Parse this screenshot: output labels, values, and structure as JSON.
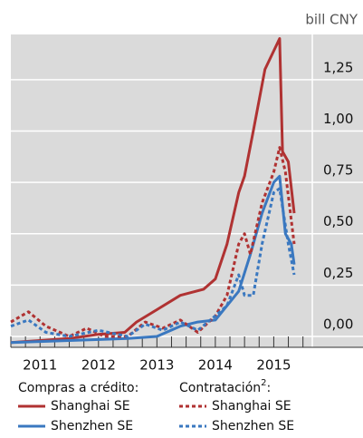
{
  "chart_data": {
    "type": "line",
    "unit": "bill CNY",
    "xlim": [
      2011,
      2016.16
    ],
    "ylim": [
      -0.053,
      1.47
    ],
    "yticks": [
      {
        "value": 0,
        "label": "0,00"
      },
      {
        "value": 0.25,
        "label": "0,25"
      },
      {
        "value": 0.5,
        "label": "0,50"
      },
      {
        "value": 0.75,
        "label": "0,75"
      },
      {
        "value": 1.0,
        "label": "1,00"
      },
      {
        "value": 1.25,
        "label": "1,25"
      }
    ],
    "xticks": [
      {
        "value": 2011.5,
        "label": "2011"
      },
      {
        "value": 2012.5,
        "label": "2012"
      },
      {
        "value": 2013.5,
        "label": "2013"
      },
      {
        "value": 2014.5,
        "label": "2014"
      },
      {
        "value": 2015.5,
        "label": "2015"
      }
    ],
    "xticks_minor": [
      2011,
      2011.25,
      2011.5,
      2011.75,
      2012,
      2012.25,
      2012.5,
      2012.75,
      2013,
      2013.25,
      2013.5,
      2013.75,
      2014,
      2014.25,
      2014.5,
      2014.75,
      2015,
      2015.25,
      2015.5,
      2015.75,
      2016
    ],
    "grid": true,
    "background": "#dadada",
    "legend_groups": [
      {
        "title": "Compras a crédito:"
      },
      {
        "title": "Contratación",
        "note": "2",
        "suffix": ":"
      }
    ],
    "series": [
      {
        "name": "Shanghai SE",
        "group": 0,
        "color": "#b03232",
        "dash": false,
        "x": [
          2011.0,
          2011.5,
          2012.0,
          2012.5,
          2012.95,
          2013.15,
          2013.5,
          2013.9,
          2014.3,
          2014.5,
          2014.7,
          2014.9,
          2015.0,
          2015.15,
          2015.35,
          2015.6,
          2015.65,
          2015.75,
          2015.85
        ],
        "values": [
          -0.03,
          -0.02,
          -0.01,
          0.01,
          0.02,
          0.07,
          0.13,
          0.2,
          0.23,
          0.28,
          0.45,
          0.7,
          0.78,
          1.0,
          1.3,
          1.45,
          0.9,
          0.85,
          0.6
        ]
      },
      {
        "name": "Shenzhen SE",
        "group": 0,
        "color": "#3a78c0",
        "dash": false,
        "x": [
          2011.0,
          2012.0,
          2013.0,
          2013.5,
          2013.9,
          2014.2,
          2014.5,
          2014.7,
          2014.9,
          2015.1,
          2015.3,
          2015.5,
          2015.6,
          2015.7,
          2015.8,
          2015.85
        ],
        "values": [
          -0.03,
          -0.02,
          -0.01,
          0.0,
          0.05,
          0.07,
          0.08,
          0.15,
          0.22,
          0.4,
          0.6,
          0.75,
          0.78,
          0.5,
          0.45,
          0.35
        ]
      },
      {
        "name": "Shanghai SE",
        "group": 1,
        "color": "#b03232",
        "dash": true,
        "x": [
          2011.0,
          2011.3,
          2011.6,
          2012.0,
          2012.3,
          2012.6,
          2013.0,
          2013.3,
          2013.6,
          2013.9,
          2014.2,
          2014.5,
          2014.7,
          2014.9,
          2015.0,
          2015.1,
          2015.3,
          2015.5,
          2015.6,
          2015.7,
          2015.85
        ],
        "values": [
          0.07,
          0.12,
          0.05,
          0.0,
          0.04,
          0.0,
          0.0,
          0.07,
          0.04,
          0.08,
          0.02,
          0.1,
          0.2,
          0.45,
          0.5,
          0.4,
          0.65,
          0.8,
          0.92,
          0.8,
          0.45
        ]
      },
      {
        "name": "Shenzhen SE",
        "group": 1,
        "color": "#3a78c0",
        "dash": true,
        "x": [
          2011.0,
          2011.3,
          2011.6,
          2012.0,
          2012.5,
          2013.0,
          2013.3,
          2013.6,
          2013.9,
          2014.2,
          2014.5,
          2014.7,
          2014.9,
          2015.0,
          2015.15,
          2015.3,
          2015.5,
          2015.6,
          2015.75,
          2015.85
        ],
        "values": [
          0.05,
          0.08,
          0.02,
          0.0,
          0.03,
          0.0,
          0.06,
          0.03,
          0.07,
          0.03,
          0.1,
          0.15,
          0.3,
          0.2,
          0.2,
          0.45,
          0.7,
          0.72,
          0.45,
          0.3
        ]
      }
    ]
  }
}
